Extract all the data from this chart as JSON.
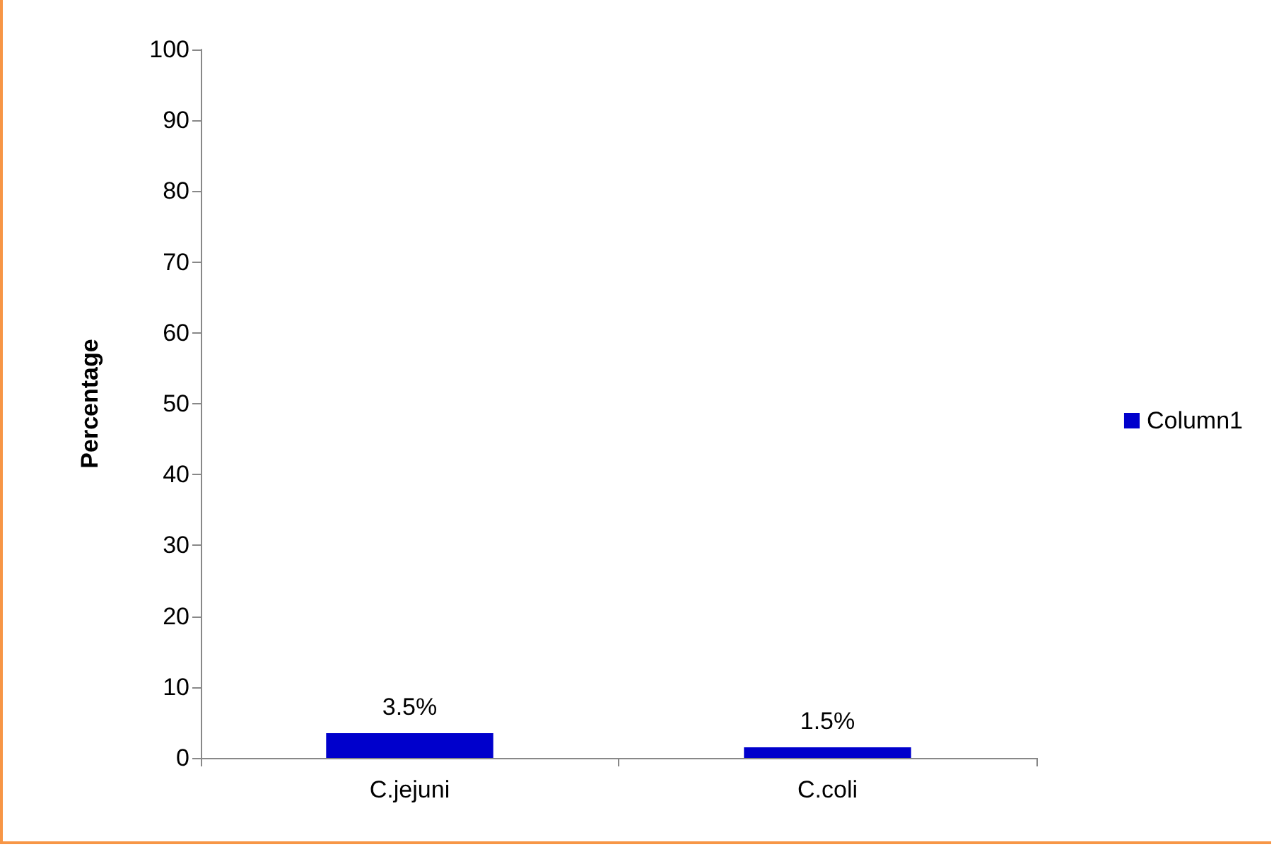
{
  "chart_data": {
    "type": "bar",
    "ylabel": "Percentage",
    "categories": [
      "C.jejuni",
      "C.coli"
    ],
    "series": [
      {
        "name": "Column1",
        "color": "#0000cc",
        "values": [
          3.5,
          1.5
        ],
        "value_labels": [
          "3.5%",
          "1.5%"
        ]
      }
    ],
    "ylim": [
      0,
      100
    ],
    "yticks": [
      0,
      10,
      20,
      30,
      40,
      50,
      60,
      70,
      80,
      90,
      100
    ],
    "grid": false,
    "legend": "right"
  }
}
